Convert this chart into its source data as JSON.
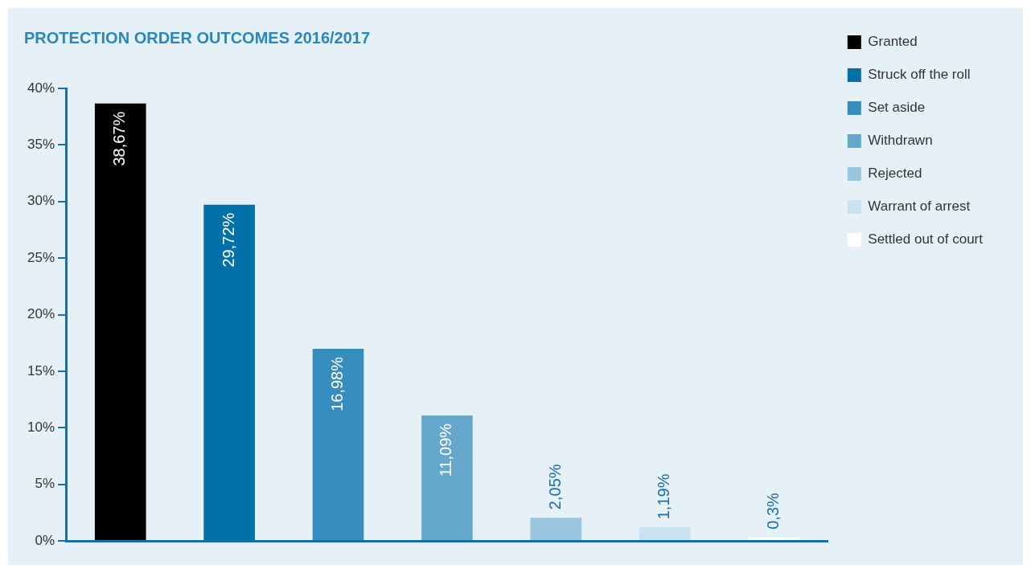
{
  "chart_data": {
    "type": "bar",
    "title": "PROTECTION ORDER OUTCOMES 2016/2017",
    "categories": [
      null
    ],
    "series": [
      {
        "name": "Granted",
        "color": "#000000",
        "values": [
          38.67
        ],
        "value_labels": [
          "38,67%"
        ]
      },
      {
        "name": "Struck off the roll",
        "color": "#0070a8",
        "values": [
          29.72
        ],
        "value_labels": [
          "29,72%"
        ]
      },
      {
        "name": "Set aside",
        "color": "#378dbd",
        "values": [
          16.98
        ],
        "value_labels": [
          "16,98%"
        ]
      },
      {
        "name": "Withdrawn",
        "color": "#65a8cc",
        "values": [
          11.09
        ],
        "value_labels": [
          "11,09%"
        ]
      },
      {
        "name": "Rejected",
        "color": "#9ac6df",
        "values": [
          2.05
        ],
        "value_labels": [
          "2,05%"
        ]
      },
      {
        "name": "Warrant of arrest",
        "color": "#c9e2f0",
        "values": [
          1.19
        ],
        "value_labels": [
          "1,19%"
        ]
      },
      {
        "name": "Settled out of court",
        "color": "#ffffff",
        "values": [
          0.3
        ],
        "value_labels": [
          "0,3%"
        ]
      }
    ],
    "ylim": [
      0,
      40
    ],
    "yticks": [
      {
        "value": 0,
        "label": "0%"
      },
      {
        "value": 5,
        "label": "5%"
      },
      {
        "value": 10,
        "label": "10%"
      },
      {
        "value": 15,
        "label": "15%"
      },
      {
        "value": 20,
        "label": "20%"
      },
      {
        "value": 25,
        "label": "25%"
      },
      {
        "value": 30,
        "label": "30%"
      },
      {
        "value": 35,
        "label": "35%"
      },
      {
        "value": 40,
        "label": "40%"
      }
    ],
    "grid": false,
    "legend": "top right",
    "tick_labels": "y"
  }
}
